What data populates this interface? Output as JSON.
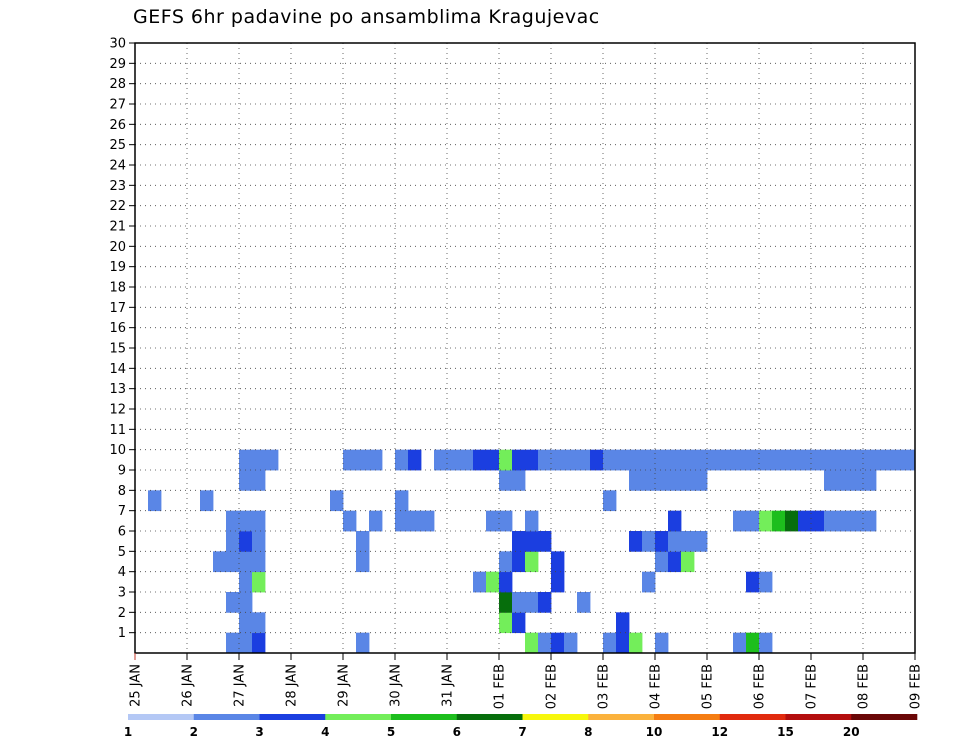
{
  "title": "GEFS 6hr padavine po ansamblima Kragujevac",
  "chart_data": {
    "type": "heatmap",
    "title": "GEFS 6hr padavine po ansamblima Kragujevac",
    "x_label_format": "DD MON",
    "x_ticks": [
      "25 JAN",
      "26 JAN",
      "27 JAN",
      "28 JAN",
      "29 JAN",
      "30 JAN",
      "31 JAN",
      "01 FEB",
      "02 FEB",
      "03 FEB",
      "04 FEB",
      "05 FEB",
      "06 FEB",
      "07 FEB",
      "08 FEB",
      "09 FEB"
    ],
    "y_ticks": [
      "1",
      "2",
      "3",
      "4",
      "5",
      "6",
      "7",
      "8",
      "9",
      "10",
      "11",
      "12",
      "13",
      "14",
      "15",
      "16",
      "17",
      "18",
      "19",
      "20",
      "21",
      "22",
      "23",
      "24",
      "25",
      "26",
      "27",
      "28",
      "29",
      "30"
    ],
    "x_range_steps": [
      0,
      60
    ],
    "y_range_members": [
      0,
      30
    ],
    "grid": "dotted",
    "colorbar": {
      "placement": "bottom",
      "levels": [
        "1",
        "2",
        "3",
        "4",
        "5",
        "6",
        "7",
        "8",
        "10",
        "12",
        "15",
        "20"
      ],
      "colors": [
        "#b4c8f5",
        "#5a86e6",
        "#1b3ee0",
        "#73ee5a",
        "#1dbe1d",
        "#066e0c",
        "#f7f70c",
        "#fbb23c",
        "#f57d12",
        "#e12a0e",
        "#b40e0e",
        "#6a0707"
      ]
    },
    "cells": [
      [
        7,
        0,
        1
      ],
      [
        8,
        0,
        1
      ],
      [
        9,
        0,
        2
      ],
      [
        17,
        0,
        1
      ],
      [
        30,
        0,
        3
      ],
      [
        31,
        0,
        1
      ],
      [
        32,
        0,
        2
      ],
      [
        33,
        0,
        1
      ],
      [
        36,
        0,
        1
      ],
      [
        37,
        0,
        2
      ],
      [
        38,
        0,
        3
      ],
      [
        40,
        0,
        1
      ],
      [
        46,
        0,
        1
      ],
      [
        47,
        0,
        4
      ],
      [
        48,
        0,
        1
      ],
      [
        8,
        1,
        1
      ],
      [
        9,
        1,
        1
      ],
      [
        28,
        1,
        3
      ],
      [
        29,
        1,
        2
      ],
      [
        37,
        1,
        2
      ],
      [
        7,
        2,
        1
      ],
      [
        8,
        2,
        1
      ],
      [
        28,
        2,
        5
      ],
      [
        29,
        2,
        1
      ],
      [
        30,
        2,
        1
      ],
      [
        31,
        2,
        2
      ],
      [
        34,
        2,
        1
      ],
      [
        8,
        3,
        1
      ],
      [
        9,
        3,
        3
      ],
      [
        26,
        3,
        1
      ],
      [
        27,
        3,
        3
      ],
      [
        28,
        3,
        2
      ],
      [
        32,
        3,
        2
      ],
      [
        39,
        3,
        1
      ],
      [
        47,
        3,
        2
      ],
      [
        48,
        3,
        1
      ],
      [
        6,
        4,
        1
      ],
      [
        7,
        4,
        1
      ],
      [
        8,
        4,
        1
      ],
      [
        9,
        4,
        1
      ],
      [
        17,
        4,
        1
      ],
      [
        28,
        4,
        1
      ],
      [
        29,
        4,
        2
      ],
      [
        30,
        4,
        3
      ],
      [
        32,
        4,
        2
      ],
      [
        40,
        4,
        1
      ],
      [
        41,
        4,
        2
      ],
      [
        42,
        4,
        3
      ],
      [
        7,
        5,
        1
      ],
      [
        8,
        5,
        2
      ],
      [
        9,
        5,
        1
      ],
      [
        17,
        5,
        1
      ],
      [
        29,
        5,
        2
      ],
      [
        30,
        5,
        2
      ],
      [
        31,
        5,
        2
      ],
      [
        38,
        5,
        2
      ],
      [
        39,
        5,
        1
      ],
      [
        40,
        5,
        2
      ],
      [
        41,
        5,
        1
      ],
      [
        42,
        5,
        1
      ],
      [
        43,
        5,
        1
      ],
      [
        7,
        6,
        1
      ],
      [
        8,
        6,
        1
      ],
      [
        9,
        6,
        1
      ],
      [
        16,
        6,
        1
      ],
      [
        18,
        6,
        1
      ],
      [
        20,
        6,
        1
      ],
      [
        21,
        6,
        1
      ],
      [
        22,
        6,
        1
      ],
      [
        27,
        6,
        1
      ],
      [
        28,
        6,
        1
      ],
      [
        30,
        6,
        1
      ],
      [
        41,
        6,
        2
      ],
      [
        46,
        6,
        1
      ],
      [
        47,
        6,
        1
      ],
      [
        48,
        6,
        3
      ],
      [
        49,
        6,
        4
      ],
      [
        50,
        6,
        5
      ],
      [
        51,
        6,
        2
      ],
      [
        52,
        6,
        2
      ],
      [
        53,
        6,
        1
      ],
      [
        54,
        6,
        1
      ],
      [
        55,
        6,
        1
      ],
      [
        56,
        6,
        1
      ],
      [
        1,
        7,
        1
      ],
      [
        5,
        7,
        1
      ],
      [
        15,
        7,
        1
      ],
      [
        20,
        7,
        1
      ],
      [
        36,
        7,
        1
      ],
      [
        8,
        8,
        1
      ],
      [
        9,
        8,
        1
      ],
      [
        28,
        8,
        1
      ],
      [
        29,
        8,
        1
      ],
      [
        38,
        8,
        1
      ],
      [
        39,
        8,
        1
      ],
      [
        40,
        8,
        1
      ],
      [
        41,
        8,
        1
      ],
      [
        42,
        8,
        1
      ],
      [
        43,
        8,
        1
      ],
      [
        53,
        8,
        1
      ],
      [
        54,
        8,
        1
      ],
      [
        55,
        8,
        1
      ],
      [
        56,
        8,
        1
      ],
      [
        8,
        9,
        1
      ],
      [
        9,
        9,
        1
      ],
      [
        10,
        9,
        1
      ],
      [
        16,
        9,
        1
      ],
      [
        17,
        9,
        1
      ],
      [
        18,
        9,
        1
      ],
      [
        20,
        9,
        1
      ],
      [
        21,
        9,
        2
      ],
      [
        23,
        9,
        1
      ],
      [
        24,
        9,
        1
      ],
      [
        25,
        9,
        1
      ],
      [
        26,
        9,
        2
      ],
      [
        27,
        9,
        2
      ],
      [
        28,
        9,
        3
      ],
      [
        29,
        9,
        2
      ],
      [
        30,
        9,
        2
      ],
      [
        31,
        9,
        1
      ],
      [
        32,
        9,
        1
      ],
      [
        33,
        9,
        1
      ],
      [
        34,
        9,
        1
      ],
      [
        35,
        9,
        2
      ],
      [
        36,
        9,
        1
      ],
      [
        37,
        9,
        1
      ],
      [
        38,
        9,
        1
      ],
      [
        39,
        9,
        1
      ],
      [
        40,
        9,
        1
      ],
      [
        41,
        9,
        1
      ],
      [
        42,
        9,
        1
      ],
      [
        43,
        9,
        1
      ],
      [
        44,
        9,
        1
      ],
      [
        45,
        9,
        1
      ],
      [
        46,
        9,
        1
      ],
      [
        47,
        9,
        1
      ],
      [
        48,
        9,
        1
      ],
      [
        49,
        9,
        1
      ],
      [
        50,
        9,
        1
      ],
      [
        51,
        9,
        1
      ],
      [
        52,
        9,
        1
      ],
      [
        53,
        9,
        1
      ],
      [
        54,
        9,
        1
      ],
      [
        55,
        9,
        1
      ],
      [
        56,
        9,
        1
      ],
      [
        57,
        9,
        1
      ],
      [
        58,
        9,
        1
      ],
      [
        59,
        9,
        1
      ]
    ]
  }
}
